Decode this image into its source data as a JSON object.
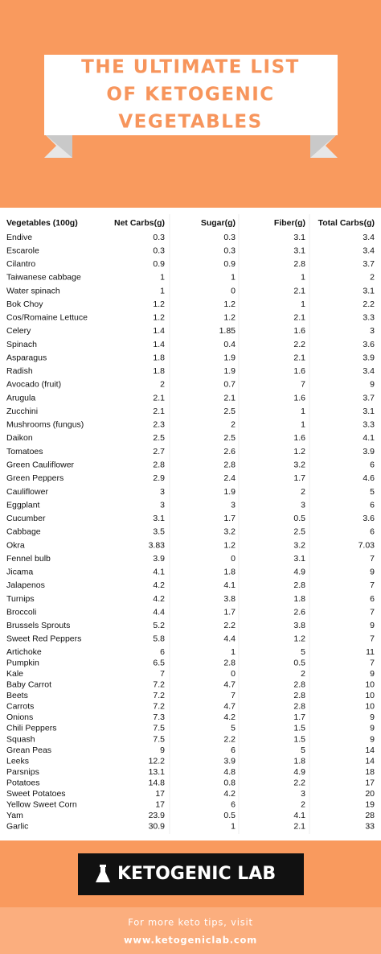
{
  "header": {
    "title": [
      "THE ULTIMATE LIST",
      "OF KETOGENIC",
      "VEGETABLES"
    ]
  },
  "table": {
    "columns": [
      "Vegetables (100g)",
      "Net Carbs(g)",
      "Sugar(g)",
      "Fiber(g)",
      "Total Carbs(g)"
    ],
    "rows": [
      [
        "Endive",
        0.3,
        0.3,
        3.1,
        3.4
      ],
      [
        "Escarole",
        0.3,
        0.3,
        3.1,
        3.4
      ],
      [
        "Cilantro",
        0.9,
        0.9,
        2.8,
        3.7
      ],
      [
        "Taiwanese cabbage",
        1,
        1,
        1,
        2
      ],
      [
        "Water spinach",
        1,
        0,
        2.1,
        3.1
      ],
      [
        "Bok Choy",
        1.2,
        1.2,
        1,
        2.2
      ],
      [
        "Cos/Romaine Lettuce",
        1.2,
        1.2,
        2.1,
        3.3
      ],
      [
        "Celery",
        1.4,
        1.85,
        1.6,
        3
      ],
      [
        "Spinach",
        1.4,
        0.4,
        2.2,
        3.6
      ],
      [
        "Asparagus",
        1.8,
        1.9,
        2.1,
        3.9
      ],
      [
        "Radish",
        1.8,
        1.9,
        1.6,
        3.4
      ],
      [
        "Avocado (fruit)",
        2,
        0.7,
        7,
        9
      ],
      [
        "Arugula",
        2.1,
        2.1,
        1.6,
        3.7
      ],
      [
        "Zucchini",
        2.1,
        2.5,
        1,
        3.1
      ],
      [
        "Mushrooms (fungus)",
        2.3,
        2,
        1,
        3.3
      ],
      [
        "Daikon",
        2.5,
        2.5,
        1.6,
        4.1
      ],
      [
        "Tomatoes",
        2.7,
        2.6,
        1.2,
        3.9
      ],
      [
        "Green Cauliflower",
        2.8,
        2.8,
        3.2,
        6
      ],
      [
        "Green Peppers",
        2.9,
        2.4,
        1.7,
        4.6
      ],
      [
        "Cauliflower",
        3,
        1.9,
        2,
        5
      ],
      [
        "Eggplant",
        3,
        3,
        3,
        6
      ],
      [
        "Cucumber",
        3.1,
        1.7,
        0.5,
        3.6
      ],
      [
        "Cabbage",
        3.5,
        3.2,
        2.5,
        6
      ],
      [
        "Okra",
        3.83,
        1.2,
        3.2,
        7.03
      ],
      [
        "Fennel bulb",
        3.9,
        0,
        3.1,
        7
      ],
      [
        "Jicama",
        4.1,
        1.8,
        4.9,
        9
      ],
      [
        "Jalapenos",
        4.2,
        4.1,
        2.8,
        7
      ],
      [
        "Turnips",
        4.2,
        3.8,
        1.8,
        6
      ],
      [
        "Broccoli",
        4.4,
        1.7,
        2.6,
        7
      ],
      [
        "Brussels Sprouts",
        5.2,
        2.2,
        3.8,
        9
      ],
      [
        "Sweet Red Peppers",
        5.8,
        4.4,
        1.2,
        7
      ],
      [
        "Artichoke",
        6,
        1,
        5,
        11
      ],
      [
        "Pumpkin",
        6.5,
        2.8,
        0.5,
        7
      ],
      [
        "Kale",
        7,
        0,
        2,
        9
      ],
      [
        "Baby Carrot",
        7.2,
        4.7,
        2.8,
        10
      ],
      [
        "Beets",
        7.2,
        7,
        2.8,
        10
      ],
      [
        "Carrots",
        7.2,
        4.7,
        2.8,
        10
      ],
      [
        "Onions",
        7.3,
        4.2,
        1.7,
        9
      ],
      [
        "Chili Peppers",
        7.5,
        5,
        1.5,
        9
      ],
      [
        "Squash",
        7.5,
        2.2,
        1.5,
        9
      ],
      [
        "Grean Peas",
        9,
        6,
        5,
        14
      ],
      [
        "Leeks",
        12.2,
        3.9,
        1.8,
        14
      ],
      [
        "Parsnips",
        13.1,
        4.8,
        4.9,
        18
      ],
      [
        "Potatoes",
        14.8,
        0.8,
        2.2,
        17
      ],
      [
        "Sweet Potatoes",
        17,
        4.2,
        3,
        20
      ],
      [
        "Yellow Sweet Corn",
        17,
        6,
        2,
        19
      ],
      [
        "Yam",
        23.9,
        0.5,
        4.1,
        28
      ],
      [
        "Garlic",
        30.9,
        1,
        2.1,
        33
      ]
    ]
  },
  "footer": {
    "brand": "KETOGENIC LAB",
    "text": "For more keto tips, visit",
    "url": "www.ketogeniclab.com"
  }
}
